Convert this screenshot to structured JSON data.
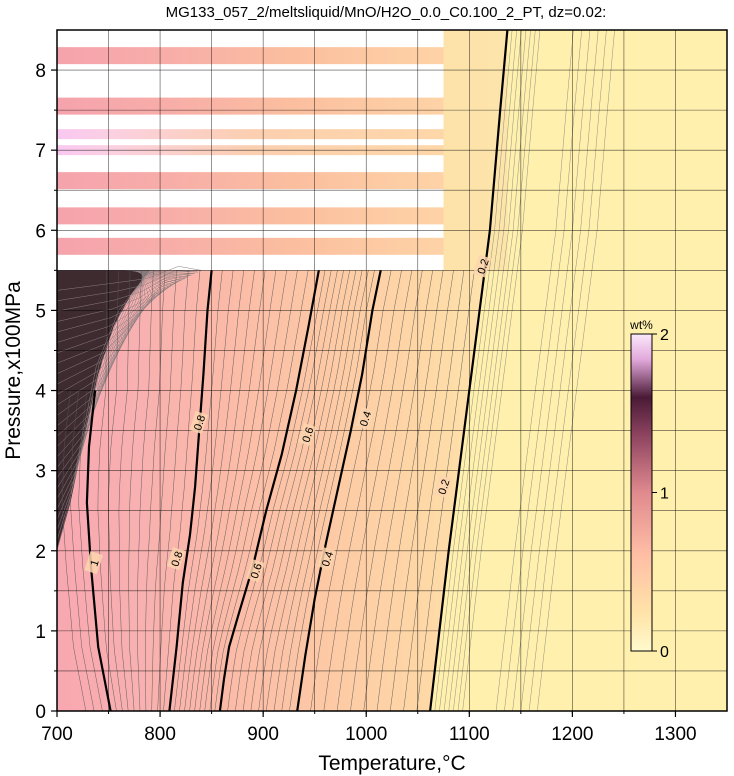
{
  "chart_data": {
    "type": "heatmap",
    "title": "MG133_057_2/meltsliquid/MnO/H2O_0.0_C0.100_2_PT, dz=0.02:",
    "xlabel": "Temperature,°C",
    "ylabel": "Pressure,x100MPa",
    "xlim": [
      700,
      1350
    ],
    "ylim": [
      0,
      8.5
    ],
    "x_ticks": [
      700,
      800,
      900,
      1000,
      1100,
      1200,
      1300
    ],
    "y_ticks": [
      0,
      1,
      2,
      3,
      4,
      5,
      6,
      7,
      8
    ],
    "grid": true,
    "colorbar": {
      "label": "wt%",
      "range": [
        0,
        2
      ],
      "ticks": [
        0,
        1,
        2
      ],
      "colors": [
        "#fffacd",
        "#ffd9a0",
        "#ffb3a7",
        "#f09aa8",
        "#b0607a",
        "#3a1428",
        "#f6c8f2",
        "#ffffff"
      ],
      "placement": "right-inside"
    },
    "contour_interval": 0.02,
    "bold_contours": [
      {
        "level": 1.0,
        "label": "1",
        "points": [
          [
            752,
            0
          ],
          [
            740,
            0.8
          ],
          [
            733,
            1.8
          ],
          [
            729,
            2.6
          ],
          [
            731,
            3.3
          ],
          [
            737,
            4.0
          ]
        ]
      },
      {
        "level": 0.8,
        "label": "0.8",
        "points": [
          [
            809,
            0
          ],
          [
            816,
            0.8
          ],
          [
            822,
            1.6
          ],
          [
            829,
            2.2
          ],
          [
            834,
            2.8
          ],
          [
            838,
            3.5
          ],
          [
            842,
            4.2
          ],
          [
            846,
            5.0
          ],
          [
            850,
            5.5
          ]
        ]
      },
      {
        "level": 0.6,
        "label": "0.6",
        "points": [
          [
            858,
            0
          ],
          [
            862,
            0.4
          ],
          [
            867,
            0.8
          ],
          [
            876,
            1.2
          ],
          [
            890,
            1.8
          ],
          [
            903,
            2.5
          ],
          [
            918,
            3.2
          ],
          [
            932,
            4.0
          ],
          [
            944,
            4.8
          ],
          [
            954,
            5.5
          ]
        ]
      },
      {
        "level": 0.4,
        "label": "0.4",
        "points": [
          [
            933,
            0
          ],
          [
            941,
            0.7
          ],
          [
            950,
            1.4
          ],
          [
            961,
            2.1
          ],
          [
            973,
            2.8
          ],
          [
            985,
            3.5
          ],
          [
            996,
            4.2
          ],
          [
            1006,
            5.0
          ],
          [
            1014,
            5.5
          ]
        ]
      },
      {
        "level": 0.2,
        "label": "0.2",
        "points": [
          [
            1062,
            0
          ],
          [
            1071,
            1.0
          ],
          [
            1080,
            2.0
          ],
          [
            1090,
            3.0
          ],
          [
            1100,
            4.0
          ],
          [
            1110,
            5.0
          ],
          [
            1120,
            6.0
          ],
          [
            1130,
            7.5
          ],
          [
            1137,
            8.5
          ]
        ]
      }
    ],
    "contour_labels": [
      {
        "text": "1",
        "x": 736,
        "y": 1.85
      },
      {
        "text": "0.8",
        "x": 816,
        "y": 1.9
      },
      {
        "text": "0.8",
        "x": 838,
        "y": 3.6
      },
      {
        "text": "0.6",
        "x": 893,
        "y": 1.75
      },
      {
        "text": "0.6",
        "x": 943,
        "y": 3.45
      },
      {
        "text": "0.4",
        "x": 962,
        "y": 1.9
      },
      {
        "text": "0.4",
        "x": 999,
        "y": 3.65
      },
      {
        "text": "0.2",
        "x": 1075,
        "y": 2.8
      },
      {
        "text": "0.2",
        "x": 1113,
        "y": 5.55
      }
    ],
    "bands": [
      {
        "p_center": 8.18,
        "kind": "data"
      },
      {
        "p_center": 7.55,
        "kind": "data"
      },
      {
        "p_center": 7.2,
        "kind": "gradient"
      },
      {
        "p_center": 7.0,
        "kind": "gradient"
      },
      {
        "p_center": 6.62,
        "kind": "data"
      },
      {
        "p_center": 6.18,
        "kind": "data"
      },
      {
        "p_center": 5.8,
        "kind": "data"
      }
    ]
  }
}
